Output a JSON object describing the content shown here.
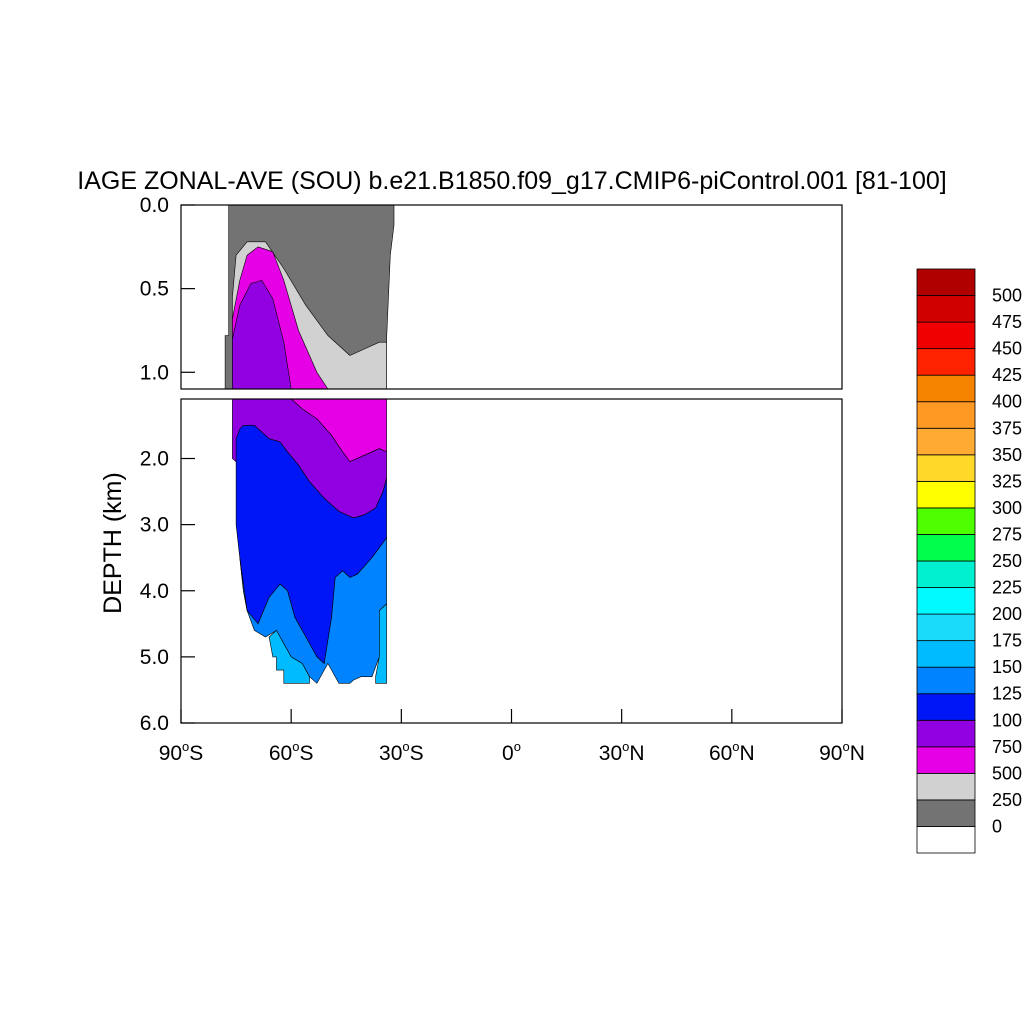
{
  "chart_data": {
    "type": "contour",
    "title": "IAGE ZONAL-AVE (SOU) b.e21.B1850.f09_g17.CMIP6-piControl.001 [81-100]",
    "ylabel": "DEPTH (km)",
    "xlim": [
      -90,
      90
    ],
    "ylim": [
      0,
      6
    ],
    "y_axis_inverted": true,
    "y_panel_break_km": 1.1,
    "x_ticks": [
      {
        "value": -90,
        "deg": "90",
        "hemi": "S"
      },
      {
        "value": -60,
        "deg": "60",
        "hemi": "S"
      },
      {
        "value": -30,
        "deg": "30",
        "hemi": "S"
      },
      {
        "value": 0,
        "deg": "0",
        "hemi": ""
      },
      {
        "value": 30,
        "deg": "30",
        "hemi": "N"
      },
      {
        "value": 60,
        "deg": "60",
        "hemi": "N"
      },
      {
        "value": 90,
        "deg": "90",
        "hemi": "N"
      }
    ],
    "y_ticks_upper": [
      {
        "value": 0.0,
        "label": "0.0"
      },
      {
        "value": 0.5,
        "label": "0.5"
      },
      {
        "value": 1.0,
        "label": "1.0"
      }
    ],
    "y_ticks_lower": [
      {
        "value": 2.0,
        "label": "2.0"
      },
      {
        "value": 3.0,
        "label": "3.0"
      },
      {
        "value": 4.0,
        "label": "4.0"
      },
      {
        "value": 5.0,
        "label": "5.0"
      },
      {
        "value": 6.0,
        "label": "6.0"
      }
    ],
    "levels": [
      {
        "label": "0",
        "color": "#ffffff"
      },
      {
        "label": "250",
        "color": "#737373"
      },
      {
        "label": "500",
        "color": "#d1d1d1"
      },
      {
        "label": "750",
        "color": "#e600e6"
      },
      {
        "label": "100",
        "color": "#9000e0"
      },
      {
        "label": "125",
        "color": "#0016f7"
      },
      {
        "label": "150",
        "color": "#0083ff"
      },
      {
        "label": "175",
        "color": "#00bbff"
      },
      {
        "label": "200",
        "color": "#1adcfa"
      },
      {
        "label": "225",
        "color": "#00faff"
      },
      {
        "label": "250",
        "color": "#00f0d0"
      },
      {
        "label": "275",
        "color": "#00ff4c"
      },
      {
        "label": "300",
        "color": "#4eff00"
      },
      {
        "label": "325",
        "color": "#ffff00"
      },
      {
        "label": "350",
        "color": "#ffd82a"
      },
      {
        "label": "375",
        "color": "#ffaa33"
      },
      {
        "label": "400",
        "color": "#ff9924"
      },
      {
        "label": "425",
        "color": "#f58300"
      },
      {
        "label": "450",
        "color": "#ff2200"
      },
      {
        "label": "475",
        "color": "#f00000"
      },
      {
        "label": "500",
        "color": "#d00000"
      },
      {
        "label": "",
        "color": "#b00000"
      }
    ],
    "upper_regions": [
      {
        "level": 1,
        "points": [
          [
            -78,
            0
          ],
          [
            -32,
            0
          ],
          [
            -32,
            0.12
          ],
          [
            -33,
            0.3
          ],
          [
            -34,
            0.8
          ],
          [
            -34,
            1.1
          ],
          [
            -78,
            1.1
          ],
          [
            -78,
            0.78
          ],
          [
            -77,
            0.78
          ],
          [
            -77,
            0
          ]
        ]
      },
      {
        "level": 2,
        "points": [
          [
            -76,
            1.1
          ],
          [
            -76,
            0.55
          ],
          [
            -75,
            0.3
          ],
          [
            -72,
            0.22
          ],
          [
            -67,
            0.22
          ],
          [
            -62,
            0.38
          ],
          [
            -56,
            0.6
          ],
          [
            -50,
            0.78
          ],
          [
            -44,
            0.9
          ],
          [
            -40,
            0.86
          ],
          [
            -36,
            0.82
          ],
          [
            -34,
            0.82
          ],
          [
            -34,
            1.1
          ]
        ]
      },
      {
        "level": 3,
        "points": [
          [
            -76,
            1.1
          ],
          [
            -76,
            0.68
          ],
          [
            -74,
            0.45
          ],
          [
            -72,
            0.3
          ],
          [
            -69,
            0.25
          ],
          [
            -65,
            0.28
          ],
          [
            -62,
            0.45
          ],
          [
            -58,
            0.75
          ],
          [
            -53,
            1.0
          ],
          [
            -50,
            1.1
          ]
        ]
      },
      {
        "level": 4,
        "points": [
          [
            -76,
            1.1
          ],
          [
            -76,
            0.8
          ],
          [
            -74,
            0.6
          ],
          [
            -71,
            0.47
          ],
          [
            -68,
            0.45
          ],
          [
            -65,
            0.56
          ],
          [
            -62,
            0.82
          ],
          [
            -60,
            1.1
          ]
        ]
      }
    ],
    "lower_regions": [
      {
        "level": 3,
        "points": [
          [
            -76,
            1.1
          ],
          [
            -34,
            1.1
          ],
          [
            -34,
            1.9
          ],
          [
            -36,
            1.85
          ],
          [
            -40,
            1.95
          ],
          [
            -44,
            2.05
          ],
          [
            -46,
            1.9
          ],
          [
            -49,
            1.65
          ],
          [
            -53,
            1.4
          ],
          [
            -57,
            1.25
          ],
          [
            -60,
            1.1
          ]
        ]
      },
      {
        "level": 4,
        "points": [
          [
            -76,
            1.1
          ],
          [
            -60,
            1.1
          ],
          [
            -57,
            1.25
          ],
          [
            -53,
            1.4
          ],
          [
            -49,
            1.65
          ],
          [
            -46,
            1.9
          ],
          [
            -44,
            2.05
          ],
          [
            -40,
            1.95
          ],
          [
            -36,
            1.85
          ],
          [
            -34,
            1.9
          ],
          [
            -34,
            2.3
          ],
          [
            -35,
            2.5
          ],
          [
            -37,
            2.75
          ],
          [
            -40,
            2.85
          ],
          [
            -43,
            2.9
          ],
          [
            -47,
            2.8
          ],
          [
            -51,
            2.6
          ],
          [
            -55,
            2.35
          ],
          [
            -58,
            2.1
          ],
          [
            -61,
            1.9
          ],
          [
            -63,
            1.75
          ],
          [
            -66,
            1.7
          ],
          [
            -70,
            1.5
          ],
          [
            -73,
            1.5
          ],
          [
            -74,
            1.7
          ],
          [
            -74,
            2.1
          ],
          [
            -76,
            2.0
          ]
        ]
      },
      {
        "level": 5,
        "points": [
          [
            -74,
            1.55
          ],
          [
            -73,
            1.5
          ],
          [
            -70,
            1.5
          ],
          [
            -66,
            1.7
          ],
          [
            -63,
            1.75
          ],
          [
            -61,
            1.9
          ],
          [
            -58,
            2.1
          ],
          [
            -55,
            2.35
          ],
          [
            -51,
            2.6
          ],
          [
            -47,
            2.8
          ],
          [
            -43,
            2.9
          ],
          [
            -40,
            2.85
          ],
          [
            -37,
            2.75
          ],
          [
            -35,
            2.5
          ],
          [
            -34,
            2.3
          ],
          [
            -34,
            3.2
          ],
          [
            -38,
            3.5
          ],
          [
            -42,
            3.75
          ],
          [
            -44,
            3.8
          ],
          [
            -46,
            3.7
          ],
          [
            -48,
            3.8
          ],
          [
            -49,
            4.4
          ],
          [
            -51,
            5.1
          ],
          [
            -53,
            5.0
          ],
          [
            -56,
            4.7
          ],
          [
            -59,
            4.4
          ],
          [
            -61,
            4.0
          ],
          [
            -63,
            3.9
          ],
          [
            -66,
            4.1
          ],
          [
            -69,
            4.5
          ],
          [
            -72,
            4.3
          ],
          [
            -73,
            4.0
          ],
          [
            -74,
            3.5
          ],
          [
            -75,
            3.0
          ],
          [
            -75,
            1.7
          ]
        ]
      },
      {
        "level": 6,
        "points": [
          [
            -74,
            3.5
          ],
          [
            -73,
            4.0
          ],
          [
            -72,
            4.3
          ],
          [
            -69,
            4.5
          ],
          [
            -66,
            4.1
          ],
          [
            -63,
            3.9
          ],
          [
            -61,
            4.0
          ],
          [
            -59,
            4.4
          ],
          [
            -56,
            4.7
          ],
          [
            -53,
            5.0
          ],
          [
            -51,
            5.1
          ],
          [
            -49,
            4.4
          ],
          [
            -48,
            3.8
          ],
          [
            -46,
            3.7
          ],
          [
            -44,
            3.8
          ],
          [
            -42,
            3.75
          ],
          [
            -38,
            3.5
          ],
          [
            -34,
            3.2
          ],
          [
            -34,
            4.2
          ],
          [
            -36,
            4.3
          ],
          [
            -36,
            5.0
          ],
          [
            -38,
            5.3
          ],
          [
            -41,
            5.3
          ],
          [
            -43,
            5.35
          ],
          [
            -44,
            5.4
          ],
          [
            -47,
            5.4
          ],
          [
            -50,
            5.1
          ],
          [
            -53,
            5.4
          ],
          [
            -55,
            5.3
          ],
          [
            -57,
            5.1
          ],
          [
            -60,
            5.0
          ],
          [
            -62,
            4.8
          ],
          [
            -64,
            4.6
          ],
          [
            -67,
            4.7
          ],
          [
            -70,
            4.6
          ],
          [
            -72,
            4.3
          ]
        ]
      },
      {
        "level": 7,
        "points": [
          [
            -34,
            4.2
          ],
          [
            -34,
            5.4
          ],
          [
            -37,
            5.4
          ],
          [
            -37,
            5.3
          ],
          [
            -36,
            5.0
          ],
          [
            -36,
            4.3
          ]
        ]
      },
      {
        "level": 7,
        "points": [
          [
            -66,
            4.7
          ],
          [
            -64,
            4.6
          ],
          [
            -62,
            4.8
          ],
          [
            -60,
            5.0
          ],
          [
            -57,
            5.1
          ],
          [
            -55,
            5.3
          ],
          [
            -55,
            5.4
          ],
          [
            -62,
            5.4
          ],
          [
            -62,
            5.2
          ],
          [
            -64,
            5.2
          ],
          [
            -64,
            5.0
          ],
          [
            -65,
            5.0
          ]
        ]
      }
    ]
  }
}
